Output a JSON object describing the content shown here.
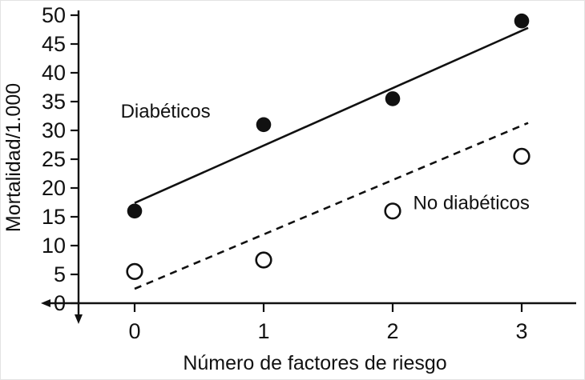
{
  "colors": {
    "ink": "#111111",
    "background": "#ffffff"
  },
  "chart_data": {
    "type": "scatter",
    "title": "",
    "xlabel": "Número de factores de riesgo",
    "ylabel": "Mortalidad/1.000",
    "xlim": [
      0,
      3
    ],
    "ylim": [
      0,
      50
    ],
    "x_ticks": [
      0,
      1,
      2,
      3
    ],
    "y_ticks": [
      0,
      5,
      10,
      15,
      20,
      25,
      30,
      35,
      40,
      45,
      50
    ],
    "grid": false,
    "legend_position": "inline-annotations",
    "series": [
      {
        "name": "Diabéticos",
        "marker": "filled-circle",
        "line_style": "solid",
        "x": [
          0,
          1,
          2,
          3
        ],
        "values": [
          16,
          31,
          35.5,
          49
        ],
        "trend": {
          "style": "solid",
          "x1": 0,
          "y1": 17.4,
          "x2": 3.05,
          "y2": 47.8
        },
        "label_pos": {
          "x": 0.24,
          "y": 33.3
        }
      },
      {
        "name": "No diabéticos",
        "marker": "open-circle",
        "line_style": "dashed",
        "x": [
          0,
          1,
          2,
          3
        ],
        "values": [
          5.5,
          7.5,
          16,
          25.5
        ],
        "trend": {
          "style": "dashed",
          "x1": 0,
          "y1": 2.5,
          "x2": 3.05,
          "y2": 31.3
        },
        "label_pos": {
          "x": 2.61,
          "y": 17.4
        }
      }
    ]
  }
}
